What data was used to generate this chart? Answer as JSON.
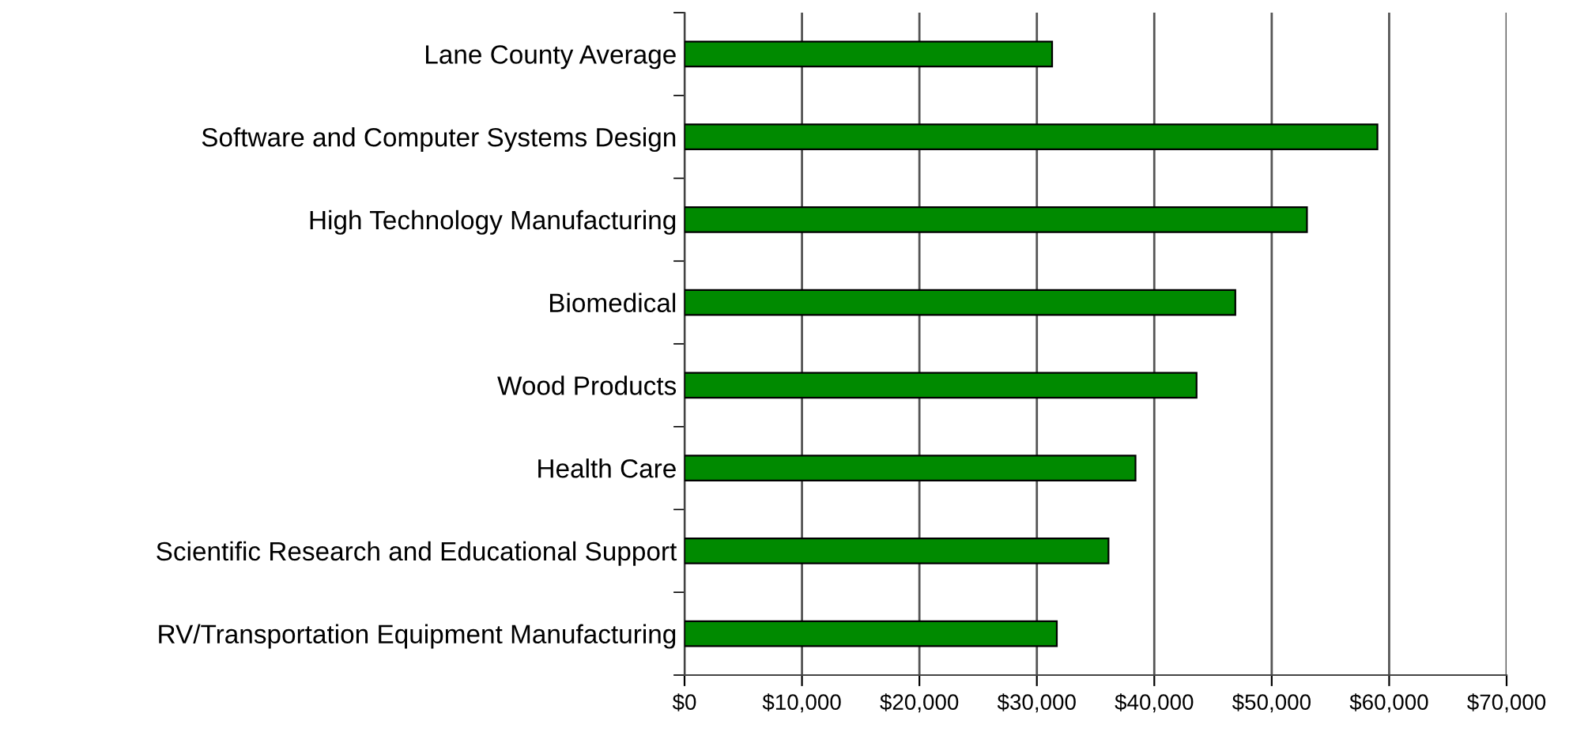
{
  "chart_data": {
    "type": "bar",
    "orientation": "horizontal",
    "categories": [
      "Lane County Average",
      "Software and Computer Systems Design",
      "High Technology Manufacturing",
      "Biomedical",
      "Wood Products",
      "Health Care",
      "Scientific Research and Educational Support",
      "RV/Transportation Equipment Manufacturing"
    ],
    "values": [
      31300,
      59000,
      53000,
      46900,
      43600,
      38400,
      36100,
      31700
    ],
    "color": "#008a00",
    "xlim": [
      0,
      70000
    ],
    "xticks": [
      {
        "value": 0,
        "label": "$0"
      },
      {
        "value": 10000,
        "label": "$10,000"
      },
      {
        "value": 20000,
        "label": "$20,000"
      },
      {
        "value": 30000,
        "label": "$30,000"
      },
      {
        "value": 40000,
        "label": "$40,000"
      },
      {
        "value": 50000,
        "label": "$50,000"
      },
      {
        "value": 60000,
        "label": "$60,000"
      },
      {
        "value": 70000,
        "label": "$70,000"
      }
    ],
    "grid": "x",
    "legend": false
  }
}
